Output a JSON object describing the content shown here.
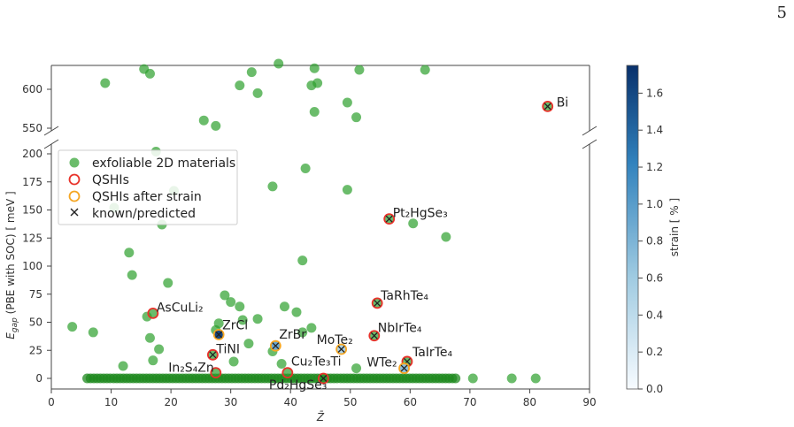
{
  "page_number": "5",
  "chart_data": {
    "type": "scatter",
    "xlabel": "Z̄",
    "ylabel": "E_gap (PBE with SOC) [ meV ]",
    "xlim": [
      0,
      90
    ],
    "ylim_lower": [
      -10,
      205
    ],
    "ylim_upper": [
      545,
      635
    ],
    "broken_y_axis": true,
    "x_ticks": [
      0,
      10,
      20,
      30,
      40,
      50,
      60,
      70,
      80,
      90
    ],
    "y_ticks_lower": [
      0,
      25,
      50,
      75,
      100,
      125,
      150,
      175,
      200
    ],
    "y_ticks_upper": [
      550,
      600
    ],
    "legend": {
      "position": "upper-left",
      "entries": [
        {
          "label": "exfoliable 2D materials",
          "marker": "filled-circle",
          "color": "#2ca02c"
        },
        {
          "label": "QSHIs",
          "marker": "open-circle",
          "color": "#e8322a"
        },
        {
          "label": "QSHIs after strain",
          "marker": "open-circle",
          "color": "#f5a623"
        },
        {
          "label": "known/predicted",
          "marker": "x",
          "color": "#222222"
        }
      ]
    },
    "colorbar": {
      "label": "strain [ % ]",
      "min": 0.0,
      "max": 1.75,
      "ticks": [
        "0.0",
        "0.2",
        "0.4",
        "0.6",
        "0.8",
        "1.0",
        "1.2",
        "1.4",
        "1.6"
      ],
      "colors": [
        "#f7fbff",
        "#08306b"
      ]
    },
    "series": [
      {
        "name": "exfoliable 2D materials",
        "points_upper": [
          [
            9,
            608
          ],
          [
            15.5,
            626
          ],
          [
            16.5,
            620
          ],
          [
            25.5,
            560
          ],
          [
            27.5,
            553
          ],
          [
            31.5,
            605
          ],
          [
            33.5,
            622
          ],
          [
            34.5,
            595
          ],
          [
            38,
            633
          ],
          [
            43.5,
            605
          ],
          [
            44,
            627
          ],
          [
            44.5,
            608
          ],
          [
            44,
            571
          ],
          [
            49.5,
            583
          ],
          [
            51,
            564
          ],
          [
            51.5,
            625
          ],
          [
            62.5,
            625
          ]
        ],
        "points_lower": [
          [
            3.5,
            46
          ],
          [
            7,
            41
          ],
          [
            10.5,
            152
          ],
          [
            12,
            11
          ],
          [
            13,
            112
          ],
          [
            13.5,
            92
          ],
          [
            16,
            55
          ],
          [
            16.5,
            36
          ],
          [
            17,
            16
          ],
          [
            17.5,
            202
          ],
          [
            18,
            26
          ],
          [
            18.5,
            137
          ],
          [
            19.5,
            85
          ],
          [
            20.5,
            167
          ],
          [
            27.5,
            43
          ],
          [
            28,
            49
          ],
          [
            29,
            74
          ],
          [
            30,
            68
          ],
          [
            30.5,
            15
          ],
          [
            31.5,
            64
          ],
          [
            32,
            52
          ],
          [
            33,
            31
          ],
          [
            34.5,
            53
          ],
          [
            37,
            24
          ],
          [
            37,
            171
          ],
          [
            38.5,
            13
          ],
          [
            39,
            64
          ],
          [
            41,
            59
          ],
          [
            42,
            105
          ],
          [
            42,
            41
          ],
          [
            42.5,
            187
          ],
          [
            43.5,
            45
          ],
          [
            49.5,
            168
          ],
          [
            51,
            9
          ],
          [
            60.5,
            138
          ],
          [
            66,
            126
          ],
          [
            70.5,
            0
          ],
          [
            77,
            0
          ],
          [
            81,
            0
          ]
        ],
        "baseline_range": [
          6,
          68
        ]
      },
      {
        "name": "QSHIs",
        "labelled": [
          {
            "label": "Bi",
            "x": 83,
            "y": 578,
            "panel": "upper",
            "known": true
          },
          {
            "label": "Pt₂HgSe₃",
            "x": 56.5,
            "y": 142,
            "panel": "lower",
            "known": true
          },
          {
            "label": "TaRhTe₄",
            "x": 54.5,
            "y": 67,
            "panel": "lower",
            "known": true
          },
          {
            "label": "NbIrTe₄",
            "x": 54,
            "y": 38,
            "panel": "lower",
            "known": true
          },
          {
            "label": "AsCuLi₂",
            "x": 17,
            "y": 58,
            "panel": "lower",
            "known": false
          },
          {
            "label": "TiNI",
            "x": 27,
            "y": 21,
            "panel": "lower",
            "known": true
          },
          {
            "label": "In₂S₄Zn",
            "x": 27.5,
            "y": 5,
            "panel": "lower",
            "known": false
          },
          {
            "label": "Cu₂Te₃Ti",
            "x": 39.5,
            "y": 5,
            "panel": "lower",
            "known": false
          },
          {
            "label": "Pd₂HgSe₃",
            "x": 45.5,
            "y": 0,
            "panel": "lower",
            "known": true
          },
          {
            "label": "TaIrTe₄",
            "x": 59.5,
            "y": 15,
            "panel": "lower",
            "known": true
          }
        ]
      },
      {
        "name": "QSHIs after strain",
        "labelled": [
          {
            "label": "ZrCl",
            "x": 28,
            "y": 39,
            "strain": 1.6,
            "known": true
          },
          {
            "label": "ZrBr",
            "x": 37.5,
            "y": 29,
            "strain": 0.9,
            "known": true
          },
          {
            "label": "MoTe₂",
            "x": 48.5,
            "y": 26,
            "strain": 0.5,
            "known": true
          },
          {
            "label": "WTe₂",
            "x": 59,
            "y": 9,
            "strain": 0.7,
            "known": true
          }
        ]
      }
    ]
  }
}
